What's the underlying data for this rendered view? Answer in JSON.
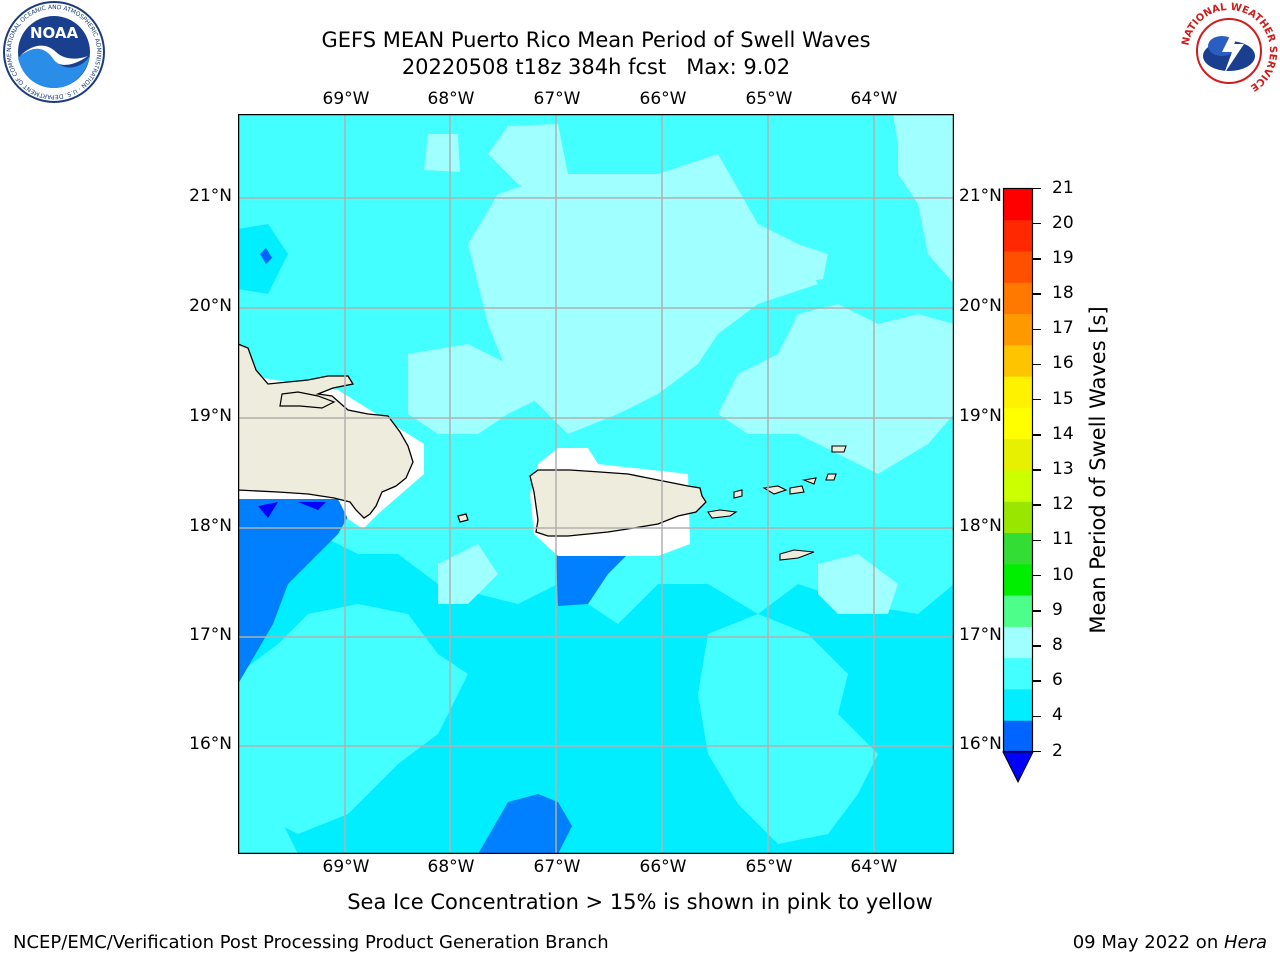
{
  "title": {
    "line1": "GEFS MEAN Puerto Rico Mean Period of Swell Waves",
    "line2": "20220508 t18z 384h fcst   Max: 9.02"
  },
  "logos": {
    "noaa_text": "NOAA",
    "noaa_ring_text": "NATIONAL OCEANIC AND ATMOSPHERIC ADMINISTRATION · U.S. DEPARTMENT OF COMMERCE",
    "nws_ring_text": "NATIONAL WEATHER SERVICE"
  },
  "map": {
    "lon_labels": [
      "69°W",
      "68°W",
      "67°W",
      "66°W",
      "65°W",
      "64°W"
    ],
    "lat_labels": [
      "21°N",
      "20°N",
      "19°N",
      "18°N",
      "17°N",
      "16°N"
    ],
    "lon_range": [
      -70.0,
      -63.25
    ],
    "lat_range": [
      15.0,
      21.75
    ],
    "land_color": "#eeecdc",
    "ocean_levels": {
      "2-4": "#0080ff",
      "4-6": "#00eeff",
      "6-8": "#44ffff",
      "8-9": "#a0ffff"
    }
  },
  "colorbar": {
    "label": "Mean Period of Swell Waves [s]",
    "ticks": [
      "21",
      "20",
      "19",
      "18",
      "17",
      "16",
      "15",
      "14",
      "13",
      "12",
      "11",
      "10",
      "9",
      "8",
      "6",
      "4",
      "2"
    ],
    "extend_color": "#0000ff",
    "colors": [
      "#0064ff",
      "#00eeff",
      "#44ffff",
      "#a0ffff",
      "#4dff8a",
      "#00ee00",
      "#33dd33",
      "#99e600",
      "#ccff00",
      "#e6f000",
      "#ffff00",
      "#fff200",
      "#ffc400",
      "#ff9900",
      "#ff7800",
      "#ff5000",
      "#ff2800",
      "#ff0000"
    ]
  },
  "footer": {
    "sea_ice_note": "Sea Ice Concentration > 15% is shown in pink to yellow",
    "branch": "NCEP/EMC/Verification Post Processing Product Generation Branch",
    "date_prefix": "09 May 2022 on ",
    "date_machine": "Hera"
  }
}
